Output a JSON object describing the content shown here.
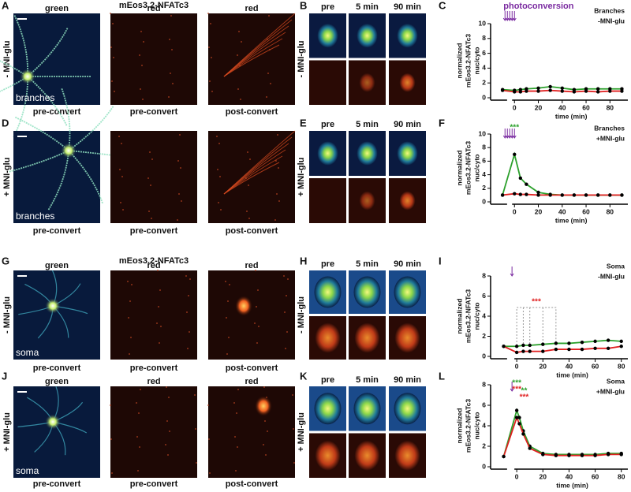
{
  "figure": {
    "rows": [
      {
        "letter": "A",
        "header": "mEos3.2-NFATc3",
        "col_headers": [
          "green",
          "red",
          "red"
        ],
        "condition": "- MNI-glu",
        "inset": "branches",
        "footers": [
          "pre-convert",
          "pre-convert",
          "post-convert"
        ],
        "time_letter": "B",
        "time_headers": [
          "pre",
          "5 min",
          "90 min"
        ],
        "time_condition": "- MNI-glu"
      },
      {
        "letter": "D",
        "condition": "+ MNI-glu",
        "inset": "branches",
        "footers": [
          "pre-convert",
          "pre-convert",
          "post-convert"
        ],
        "time_letter": "E",
        "time_headers": [
          "pre",
          "5 min",
          "90 min"
        ],
        "time_condition": "+ MNI-glu"
      },
      {
        "letter": "G",
        "header": "mEos3.2-NFATc3",
        "col_headers": [
          "green",
          "red",
          "red"
        ],
        "condition": "- MNI-glu",
        "inset": "soma",
        "footers": [
          "pre-convert",
          "pre-convert",
          "post-convert"
        ],
        "time_letter": "H",
        "time_headers": [
          "pre",
          "5 min",
          "90 min"
        ],
        "time_condition": "- MNI-glu"
      },
      {
        "letter": "J",
        "col_headers": [
          "green",
          "red",
          "red"
        ],
        "condition": "+ MNI-glu",
        "inset": "soma",
        "footers": [
          "pre-convert",
          "pre-convert",
          "post-convert"
        ],
        "time_letter": "K",
        "time_headers": [
          "pre",
          "5 min",
          "90 min"
        ],
        "time_condition": "+ MNI-glu"
      }
    ]
  },
  "chart_data": [
    {
      "type": "line",
      "panel_label": "C",
      "arrow_label": "photoconversion",
      "notes": [
        "Branches",
        "-MNI-glu"
      ],
      "ylabel_lines": [
        "normalized",
        "mEos3.2-NFATc3",
        "nuc/cyto"
      ],
      "xlabel": "time (min)",
      "x": [
        -10,
        0,
        5,
        10,
        20,
        30,
        40,
        50,
        60,
        70,
        80,
        90
      ],
      "xlim": [
        -20,
        95
      ],
      "xticks": [
        0,
        20,
        40,
        60,
        80
      ],
      "ylim": [
        0,
        10
      ],
      "yticks": [
        0,
        2,
        4,
        6,
        8,
        10
      ],
      "series": [
        {
          "color": "#2ca02c",
          "values": [
            1.1,
            1,
            1.1,
            1.2,
            1.3,
            1.5,
            1.3,
            1.1,
            1.2,
            1.2,
            1.2,
            1.2
          ]
        },
        {
          "color": "#e02020",
          "values": [
            1,
            0.8,
            0.8,
            0.9,
            0.9,
            1,
            0.9,
            0.8,
            0.9,
            0.8,
            0.9,
            0.9
          ]
        }
      ]
    },
    {
      "type": "line",
      "panel_label": "F",
      "notes": [
        "Branches",
        "+MNI-glu"
      ],
      "stars": [
        {
          "text": "***",
          "color": "#2ca02c"
        }
      ],
      "ylabel_lines": [
        "normalized",
        "mEos3.2-NFATc3",
        "nuc/cyto"
      ],
      "xlabel": "time (min)",
      "x": [
        -10,
        0,
        5,
        10,
        20,
        30,
        40,
        50,
        60,
        70,
        80,
        90
      ],
      "xlim": [
        -20,
        95
      ],
      "xticks": [
        0,
        20,
        40,
        60,
        80
      ],
      "ylim": [
        0,
        10
      ],
      "yticks": [
        0,
        2,
        4,
        6,
        8,
        10
      ],
      "series": [
        {
          "color": "#2ca02c",
          "values": [
            1,
            7,
            3.5,
            2.6,
            1.4,
            1.1,
            1,
            1,
            1,
            1,
            1,
            1
          ]
        },
        {
          "color": "#e02020",
          "values": [
            1,
            1.2,
            1.1,
            1.1,
            1,
            1,
            1,
            1,
            1,
            1,
            1,
            1
          ]
        }
      ]
    },
    {
      "type": "line",
      "panel_label": "I",
      "notes": [
        "Soma",
        "-MNI-glu"
      ],
      "stars": [
        {
          "text": "***",
          "color": "#e02020"
        }
      ],
      "ylabel_lines": [
        "normalized",
        "mEos3.2-NFATc3",
        "nuc/cyto"
      ],
      "xlabel": "time (min)",
      "x": [
        -10,
        0,
        5,
        10,
        20,
        30,
        40,
        50,
        60,
        70,
        80
      ],
      "xlim": [
        -20,
        85
      ],
      "xticks": [
        0,
        20,
        40,
        60,
        80
      ],
      "ylim": [
        0,
        8
      ],
      "yticks": [
        0,
        2,
        4,
        6,
        8
      ],
      "series": [
        {
          "color": "#2ca02c",
          "values": [
            1,
            1,
            1.1,
            1.1,
            1.2,
            1.3,
            1.3,
            1.4,
            1.5,
            1.6,
            1.5
          ]
        },
        {
          "color": "#e02020",
          "values": [
            1,
            0.4,
            0.5,
            0.5,
            0.5,
            0.7,
            0.7,
            0.7,
            0.8,
            0.8,
            1
          ]
        }
      ]
    },
    {
      "type": "line",
      "panel_label": "L",
      "notes": [
        "Soma",
        "+MNI-glu"
      ],
      "stars": [
        {
          "text": "***",
          "color": "#2ca02c"
        },
        {
          "text": "***",
          "color": "#e02020"
        },
        {
          "text": "**",
          "color": "#2ca02c"
        },
        {
          "text": "***",
          "color": "#e02020"
        }
      ],
      "ylabel_lines": [
        "normalized",
        "mEos3.2-NFATc3",
        "nuc/cyto"
      ],
      "xlabel": "time (min)",
      "x": [
        -10,
        0,
        2,
        5,
        10,
        20,
        30,
        40,
        50,
        60,
        70,
        80
      ],
      "xlim": [
        -20,
        85
      ],
      "xticks": [
        0,
        20,
        40,
        60,
        80
      ],
      "ylim": [
        0,
        8
      ],
      "yticks": [
        0,
        2,
        4,
        6,
        8
      ],
      "series": [
        {
          "color": "#2ca02c",
          "values": [
            1,
            5.5,
            4.8,
            3.5,
            2,
            1.3,
            1.2,
            1.2,
            1.2,
            1.2,
            1.3,
            1.3
          ]
        },
        {
          "color": "#e02020",
          "values": [
            1,
            4.8,
            4.2,
            3.2,
            1.8,
            1.2,
            1.1,
            1.1,
            1.1,
            1.1,
            1.2,
            1.2
          ]
        }
      ]
    }
  ]
}
